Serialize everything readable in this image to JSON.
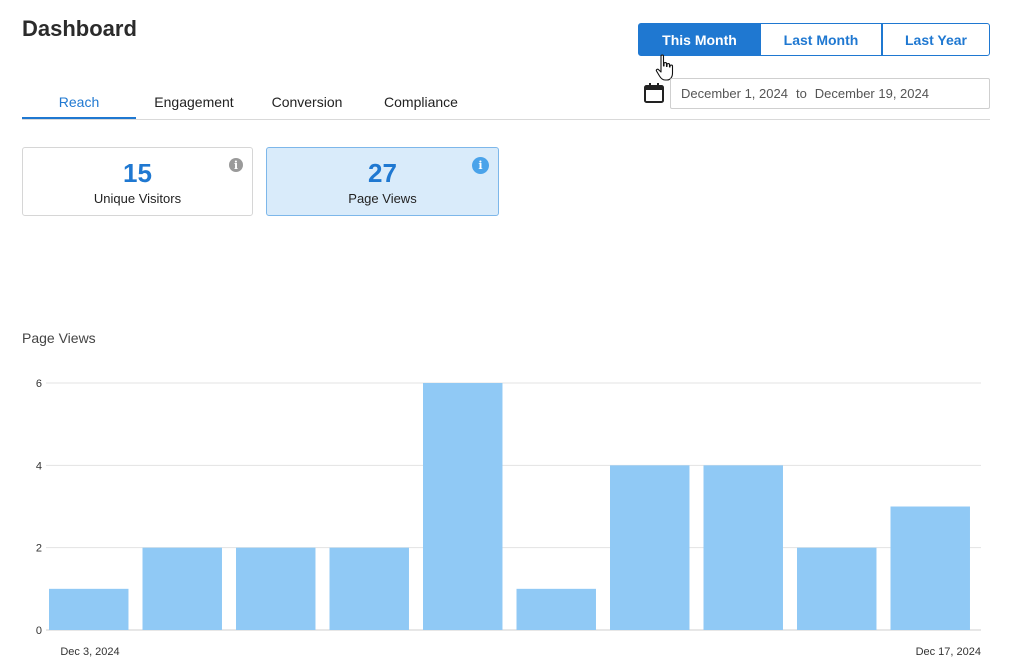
{
  "header": {
    "title": "Dashboard"
  },
  "range_buttons": [
    {
      "label": "This Month",
      "selected": true
    },
    {
      "label": "Last Month",
      "selected": false
    },
    {
      "label": "Last Year",
      "selected": false
    }
  ],
  "tabs": [
    {
      "label": "Reach",
      "active": true
    },
    {
      "label": "Engagement",
      "active": false
    },
    {
      "label": "Conversion",
      "active": false
    },
    {
      "label": "Compliance",
      "active": false
    }
  ],
  "date_range": {
    "start": "December 1, 2024",
    "separator": "to",
    "end": "December 19, 2024"
  },
  "metrics": [
    {
      "value": "15",
      "label": "Unique Visitors",
      "selected": false
    },
    {
      "value": "27",
      "label": "Page Views",
      "selected": true
    }
  ],
  "colors": {
    "accent": "#1f78d1",
    "bar": "#90c9f5",
    "selected_card_bg": "#d9ebfa"
  },
  "icons": {
    "calendar": "calendar-icon",
    "info": "info-icon",
    "cursor": "hand-pointer-icon"
  },
  "chart_data": {
    "type": "bar",
    "title": "Page Views",
    "values": [
      1,
      2,
      2,
      2,
      6,
      1,
      4,
      4,
      2,
      3
    ],
    "x_tick_labels": [
      "Dec 3, 2024",
      "Dec 17, 2024"
    ],
    "y_ticks": [
      0,
      2,
      4,
      6
    ],
    "ylim": [
      0,
      6
    ],
    "grid": true
  }
}
